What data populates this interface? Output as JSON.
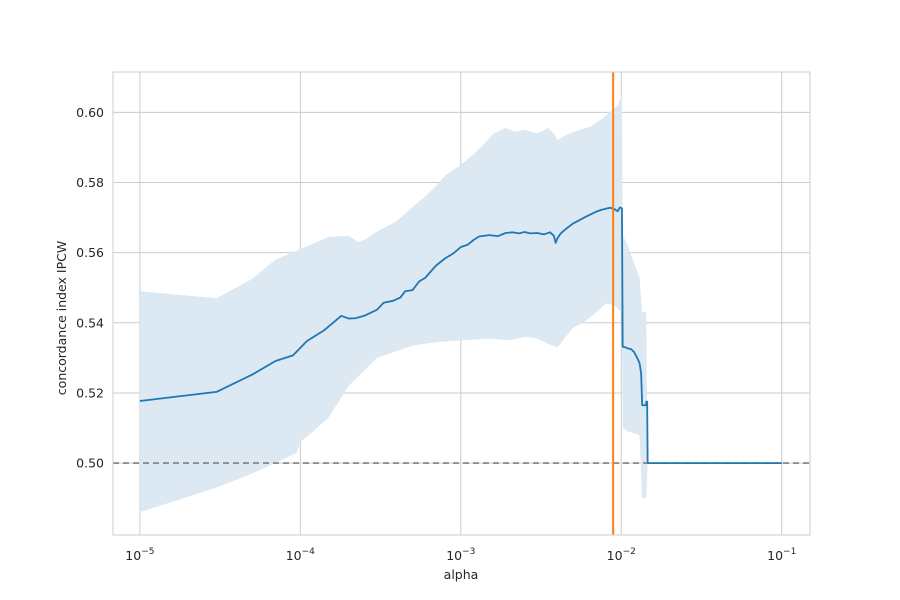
{
  "chart_data": {
    "type": "line",
    "xlabel": "alpha",
    "ylabel": "concordance index IPCW",
    "x_scale": "log",
    "xlim": [
      6.8e-06,
      0.15
    ],
    "ylim": [
      0.4795,
      0.6115
    ],
    "grid": true,
    "x_ticks": [
      {
        "value": 1e-05,
        "base": "10",
        "exp": "−5"
      },
      {
        "value": 0.0001,
        "base": "10",
        "exp": "−4"
      },
      {
        "value": 0.001,
        "base": "10",
        "exp": "−3"
      },
      {
        "value": 0.01,
        "base": "10",
        "exp": "−2"
      },
      {
        "value": 0.1,
        "base": "10",
        "exp": "−1"
      }
    ],
    "y_ticks": [
      {
        "value": 0.5,
        "label": "0.50"
      },
      {
        "value": 0.52,
        "label": "0.52"
      },
      {
        "value": 0.54,
        "label": "0.54"
      },
      {
        "value": 0.56,
        "label": "0.56"
      },
      {
        "value": 0.58,
        "label": "0.58"
      },
      {
        "value": 0.6,
        "label": "0.60"
      }
    ],
    "colors": {
      "mean_line": "#1f77b4",
      "band": "#dce8f2",
      "best_alpha_line": "#ff7f0e",
      "baseline": "#808080"
    },
    "baseline_y": 0.5,
    "best_alpha": 0.0089,
    "series": [
      {
        "role": "mean",
        "points": [
          [
            1e-05,
            0.5177
          ],
          [
            3e-05,
            0.5203
          ],
          [
            5e-05,
            0.5252
          ],
          [
            7e-05,
            0.5291
          ],
          [
            9e-05,
            0.5307
          ],
          [
            0.00011,
            0.5348
          ],
          [
            0.00014,
            0.5378
          ],
          [
            0.00018,
            0.542
          ],
          [
            0.0002,
            0.5412
          ],
          [
            0.00022,
            0.5413
          ],
          [
            0.00025,
            0.542
          ],
          [
            0.0003,
            0.5437
          ],
          [
            0.00033,
            0.5457
          ],
          [
            0.00038,
            0.5463
          ],
          [
            0.00042,
            0.5472
          ],
          [
            0.00045,
            0.549
          ],
          [
            0.0005,
            0.5493
          ],
          [
            0.00055,
            0.5518
          ],
          [
            0.0006,
            0.5528
          ],
          [
            0.0007,
            0.5563
          ],
          [
            0.0008,
            0.5584
          ],
          [
            0.0009,
            0.5598
          ],
          [
            0.001,
            0.5616
          ],
          [
            0.0011,
            0.5622
          ],
          [
            0.0012,
            0.5636
          ],
          [
            0.0013,
            0.5646
          ],
          [
            0.0015,
            0.565
          ],
          [
            0.0017,
            0.5647
          ],
          [
            0.0019,
            0.5656
          ],
          [
            0.0021,
            0.5658
          ],
          [
            0.0023,
            0.5655
          ],
          [
            0.0025,
            0.5659
          ],
          [
            0.0027,
            0.5655
          ],
          [
            0.003,
            0.5656
          ],
          [
            0.0033,
            0.5652
          ],
          [
            0.0036,
            0.5658
          ],
          [
            0.0038,
            0.5648
          ],
          [
            0.0039,
            0.5628
          ],
          [
            0.004,
            0.5641
          ],
          [
            0.0042,
            0.5655
          ],
          [
            0.0045,
            0.5667
          ],
          [
            0.005,
            0.5683
          ],
          [
            0.0055,
            0.5693
          ],
          [
            0.006,
            0.5702
          ],
          [
            0.0065,
            0.571
          ],
          [
            0.007,
            0.5717
          ],
          [
            0.0075,
            0.5722
          ],
          [
            0.008,
            0.5725
          ],
          [
            0.0085,
            0.5728
          ],
          [
            0.009,
            0.5725
          ],
          [
            0.0095,
            0.5718
          ],
          [
            0.0098,
            0.5729
          ],
          [
            0.0101,
            0.5726
          ],
          [
            0.0102,
            0.5332
          ],
          [
            0.0106,
            0.533
          ],
          [
            0.011,
            0.5327
          ],
          [
            0.0115,
            0.5325
          ],
          [
            0.012,
            0.5317
          ],
          [
            0.0125,
            0.5302
          ],
          [
            0.013,
            0.5285
          ],
          [
            0.0133,
            0.5255
          ],
          [
            0.0135,
            0.5165
          ],
          [
            0.0143,
            0.5165
          ],
          [
            0.0143,
            0.5175
          ],
          [
            0.0145,
            0.5175
          ],
          [
            0.0146,
            0.5
          ],
          [
            0.02,
            0.5
          ],
          [
            0.05,
            0.5
          ],
          [
            0.1,
            0.5
          ]
        ]
      },
      {
        "role": "upper",
        "points": [
          [
            1e-05,
            0.549
          ],
          [
            3e-05,
            0.547
          ],
          [
            5e-05,
            0.5525
          ],
          [
            7e-05,
            0.558
          ],
          [
            0.0001,
            0.561
          ],
          [
            0.00015,
            0.5645
          ],
          [
            0.0002,
            0.5648
          ],
          [
            0.00023,
            0.563
          ],
          [
            0.00026,
            0.564
          ],
          [
            0.0003,
            0.566
          ],
          [
            0.0004,
            0.569
          ],
          [
            0.0005,
            0.573
          ],
          [
            0.0006,
            0.576
          ],
          [
            0.0007,
            0.579
          ],
          [
            0.0008,
            0.582
          ],
          [
            0.001,
            0.585
          ],
          [
            0.0012,
            0.588
          ],
          [
            0.0014,
            0.591
          ],
          [
            0.0016,
            0.594
          ],
          [
            0.0019,
            0.5955
          ],
          [
            0.0022,
            0.5945
          ],
          [
            0.0025,
            0.595
          ],
          [
            0.003,
            0.594
          ],
          [
            0.0035,
            0.5955
          ],
          [
            0.0038,
            0.594
          ],
          [
            0.004,
            0.592
          ],
          [
            0.0045,
            0.5935
          ],
          [
            0.0055,
            0.595
          ],
          [
            0.0065,
            0.596
          ],
          [
            0.0075,
            0.598
          ],
          [
            0.0085,
            0.6
          ],
          [
            0.0095,
            0.602
          ],
          [
            0.0101,
            0.605
          ],
          [
            0.0102,
            0.565
          ],
          [
            0.011,
            0.562
          ],
          [
            0.012,
            0.557
          ],
          [
            0.013,
            0.553
          ],
          [
            0.0135,
            0.543
          ],
          [
            0.0143,
            0.543
          ],
          [
            0.0146,
            0.5
          ],
          [
            0.1,
            0.5
          ]
        ]
      },
      {
        "role": "lower",
        "points": [
          [
            1e-05,
            0.486
          ],
          [
            3e-05,
            0.493
          ],
          [
            5e-05,
            0.497
          ],
          [
            7e-05,
            0.5
          ],
          [
            9.5e-05,
            0.503
          ],
          [
            0.0001,
            0.506
          ],
          [
            0.00012,
            0.509
          ],
          [
            0.00015,
            0.513
          ],
          [
            0.0002,
            0.522
          ],
          [
            0.0003,
            0.53
          ],
          [
            0.0005,
            0.5335
          ],
          [
            0.0007,
            0.5345
          ],
          [
            0.001,
            0.535
          ],
          [
            0.0015,
            0.5355
          ],
          [
            0.002,
            0.535
          ],
          [
            0.0025,
            0.536
          ],
          [
            0.003,
            0.5355
          ],
          [
            0.0035,
            0.534
          ],
          [
            0.004,
            0.533
          ],
          [
            0.0045,
            0.536
          ],
          [
            0.005,
            0.5385
          ],
          [
            0.006,
            0.5405
          ],
          [
            0.007,
            0.543
          ],
          [
            0.008,
            0.5455
          ],
          [
            0.009,
            0.545
          ],
          [
            0.0101,
            0.543
          ],
          [
            0.0102,
            0.51
          ],
          [
            0.011,
            0.509
          ],
          [
            0.012,
            0.5085
          ],
          [
            0.013,
            0.508
          ],
          [
            0.0135,
            0.49
          ],
          [
            0.0143,
            0.49
          ],
          [
            0.0146,
            0.5
          ],
          [
            0.1,
            0.5
          ]
        ]
      }
    ]
  }
}
